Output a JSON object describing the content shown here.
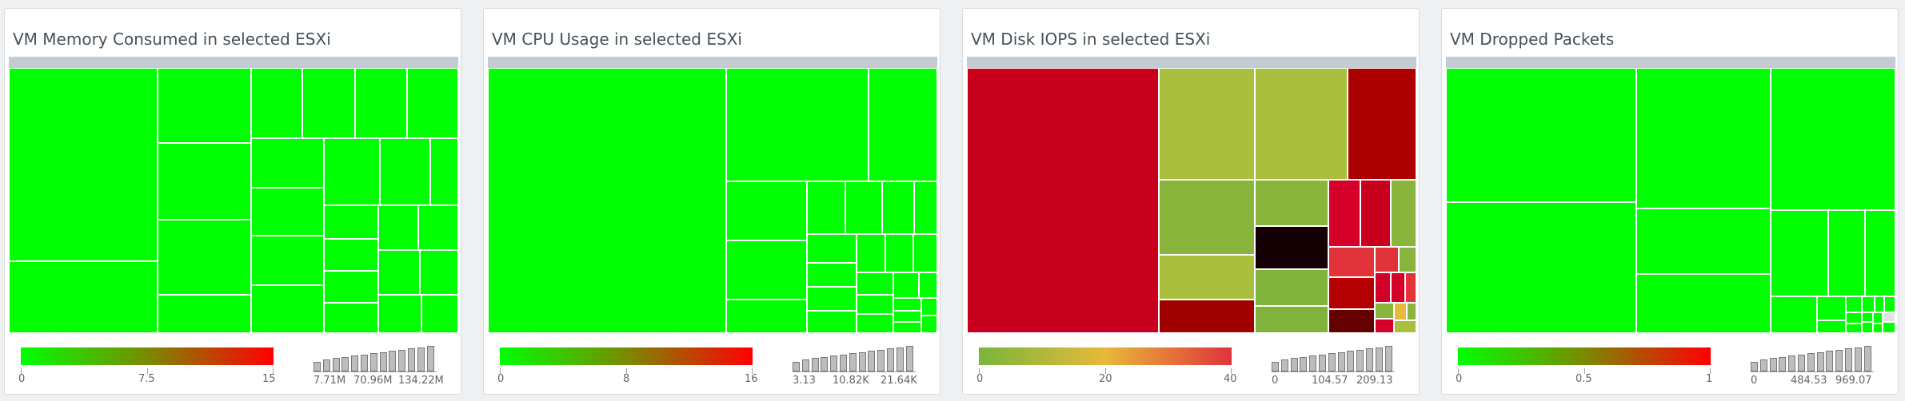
{
  "widgets": [
    {
      "title": "VM Memory Consumed in selected ESXi",
      "legend": {
        "gradient": [
          "#00ff00",
          "#ff0000"
        ],
        "labels": [
          "0",
          "7.5",
          "15"
        ]
      },
      "histogram": {
        "labels": [
          "7.71M",
          "70.96M",
          "134.22M"
        ],
        "values": [
          8,
          10,
          11,
          12,
          13,
          14,
          15,
          16,
          17,
          18,
          19,
          20,
          21
        ]
      },
      "tiles": [
        [
          "#00ff00"
        ]
      ]
    },
    {
      "title": "VM CPU Usage in selected ESXi",
      "legend": {
        "gradient": [
          "#00ff00",
          "#ff0000"
        ],
        "labels": [
          "0",
          "8",
          "16"
        ]
      },
      "histogram": {
        "labels": [
          "3.13",
          "10.82K",
          "21.64K"
        ],
        "values": [
          8,
          10,
          11,
          12,
          13,
          14,
          15,
          16,
          17,
          18,
          19,
          20,
          21
        ]
      }
    },
    {
      "title": "VM Disk IOPS in selected ESXi",
      "legend": {
        "gradient": [
          "#7ab53c",
          "#e8b93a",
          "#e0333a"
        ],
        "labels": [
          "0",
          "20",
          "40"
        ]
      },
      "histogram": {
        "labels": [
          "0",
          "104.57",
          "209.13"
        ],
        "values": [
          8,
          10,
          11,
          12,
          13,
          14,
          15,
          16,
          17,
          18,
          19,
          20,
          21
        ]
      }
    },
    {
      "title": "VM Dropped Packets",
      "legend": {
        "gradient": [
          "#00ff00",
          "#ff0000"
        ],
        "labels": [
          "0",
          "0.5",
          "1"
        ]
      },
      "histogram": {
        "labels": [
          "0",
          "484.53",
          "969.07"
        ],
        "values": [
          8,
          10,
          11,
          12,
          13,
          14,
          15,
          16,
          17,
          18,
          19,
          20,
          21
        ]
      }
    }
  ],
  "colors": {
    "green": "#00ff00",
    "red": "#c8001e",
    "olive": "#a9bf3d",
    "darkred": "#ad0000",
    "black": "#140000"
  }
}
